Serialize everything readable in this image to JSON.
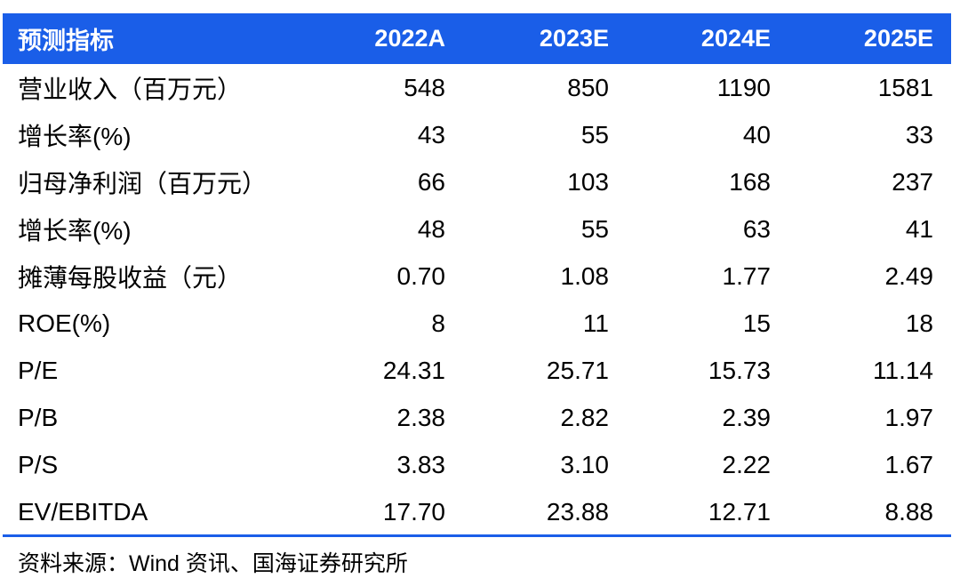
{
  "table": {
    "header": {
      "label": "预测指标",
      "years": [
        "2022A",
        "2023E",
        "2024E",
        "2025E"
      ]
    },
    "rows": [
      {
        "label": "营业收入（百万元）",
        "values": [
          "548",
          "850",
          "1190",
          "1581"
        ]
      },
      {
        "label": "增长率(%)",
        "values": [
          "43",
          "55",
          "40",
          "33"
        ]
      },
      {
        "label": "归母净利润（百万元）",
        "values": [
          "66",
          "103",
          "168",
          "237"
        ]
      },
      {
        "label": "增长率(%)",
        "values": [
          "48",
          "55",
          "63",
          "41"
        ]
      },
      {
        "label": "摊薄每股收益（元）",
        "values": [
          "0.70",
          "1.08",
          "1.77",
          "2.49"
        ]
      },
      {
        "label": "ROE(%)",
        "values": [
          "8",
          "11",
          "15",
          "18"
        ]
      },
      {
        "label": "P/E",
        "values": [
          "24.31",
          "25.71",
          "15.73",
          "11.14"
        ]
      },
      {
        "label": "P/B",
        "values": [
          "2.38",
          "2.82",
          "2.39",
          "1.97"
        ]
      },
      {
        "label": "P/S",
        "values": [
          "3.83",
          "3.10",
          "2.22",
          "1.67"
        ]
      },
      {
        "label": "EV/EBITDA",
        "values": [
          "17.70",
          "23.88",
          "12.71",
          "8.88"
        ]
      }
    ]
  },
  "source": "资料来源：Wind 资讯、国海证券研究所",
  "colors": {
    "header_bg": "#1a5ee8",
    "header_text": "#ffffff",
    "rule": "#1a5ee8"
  }
}
